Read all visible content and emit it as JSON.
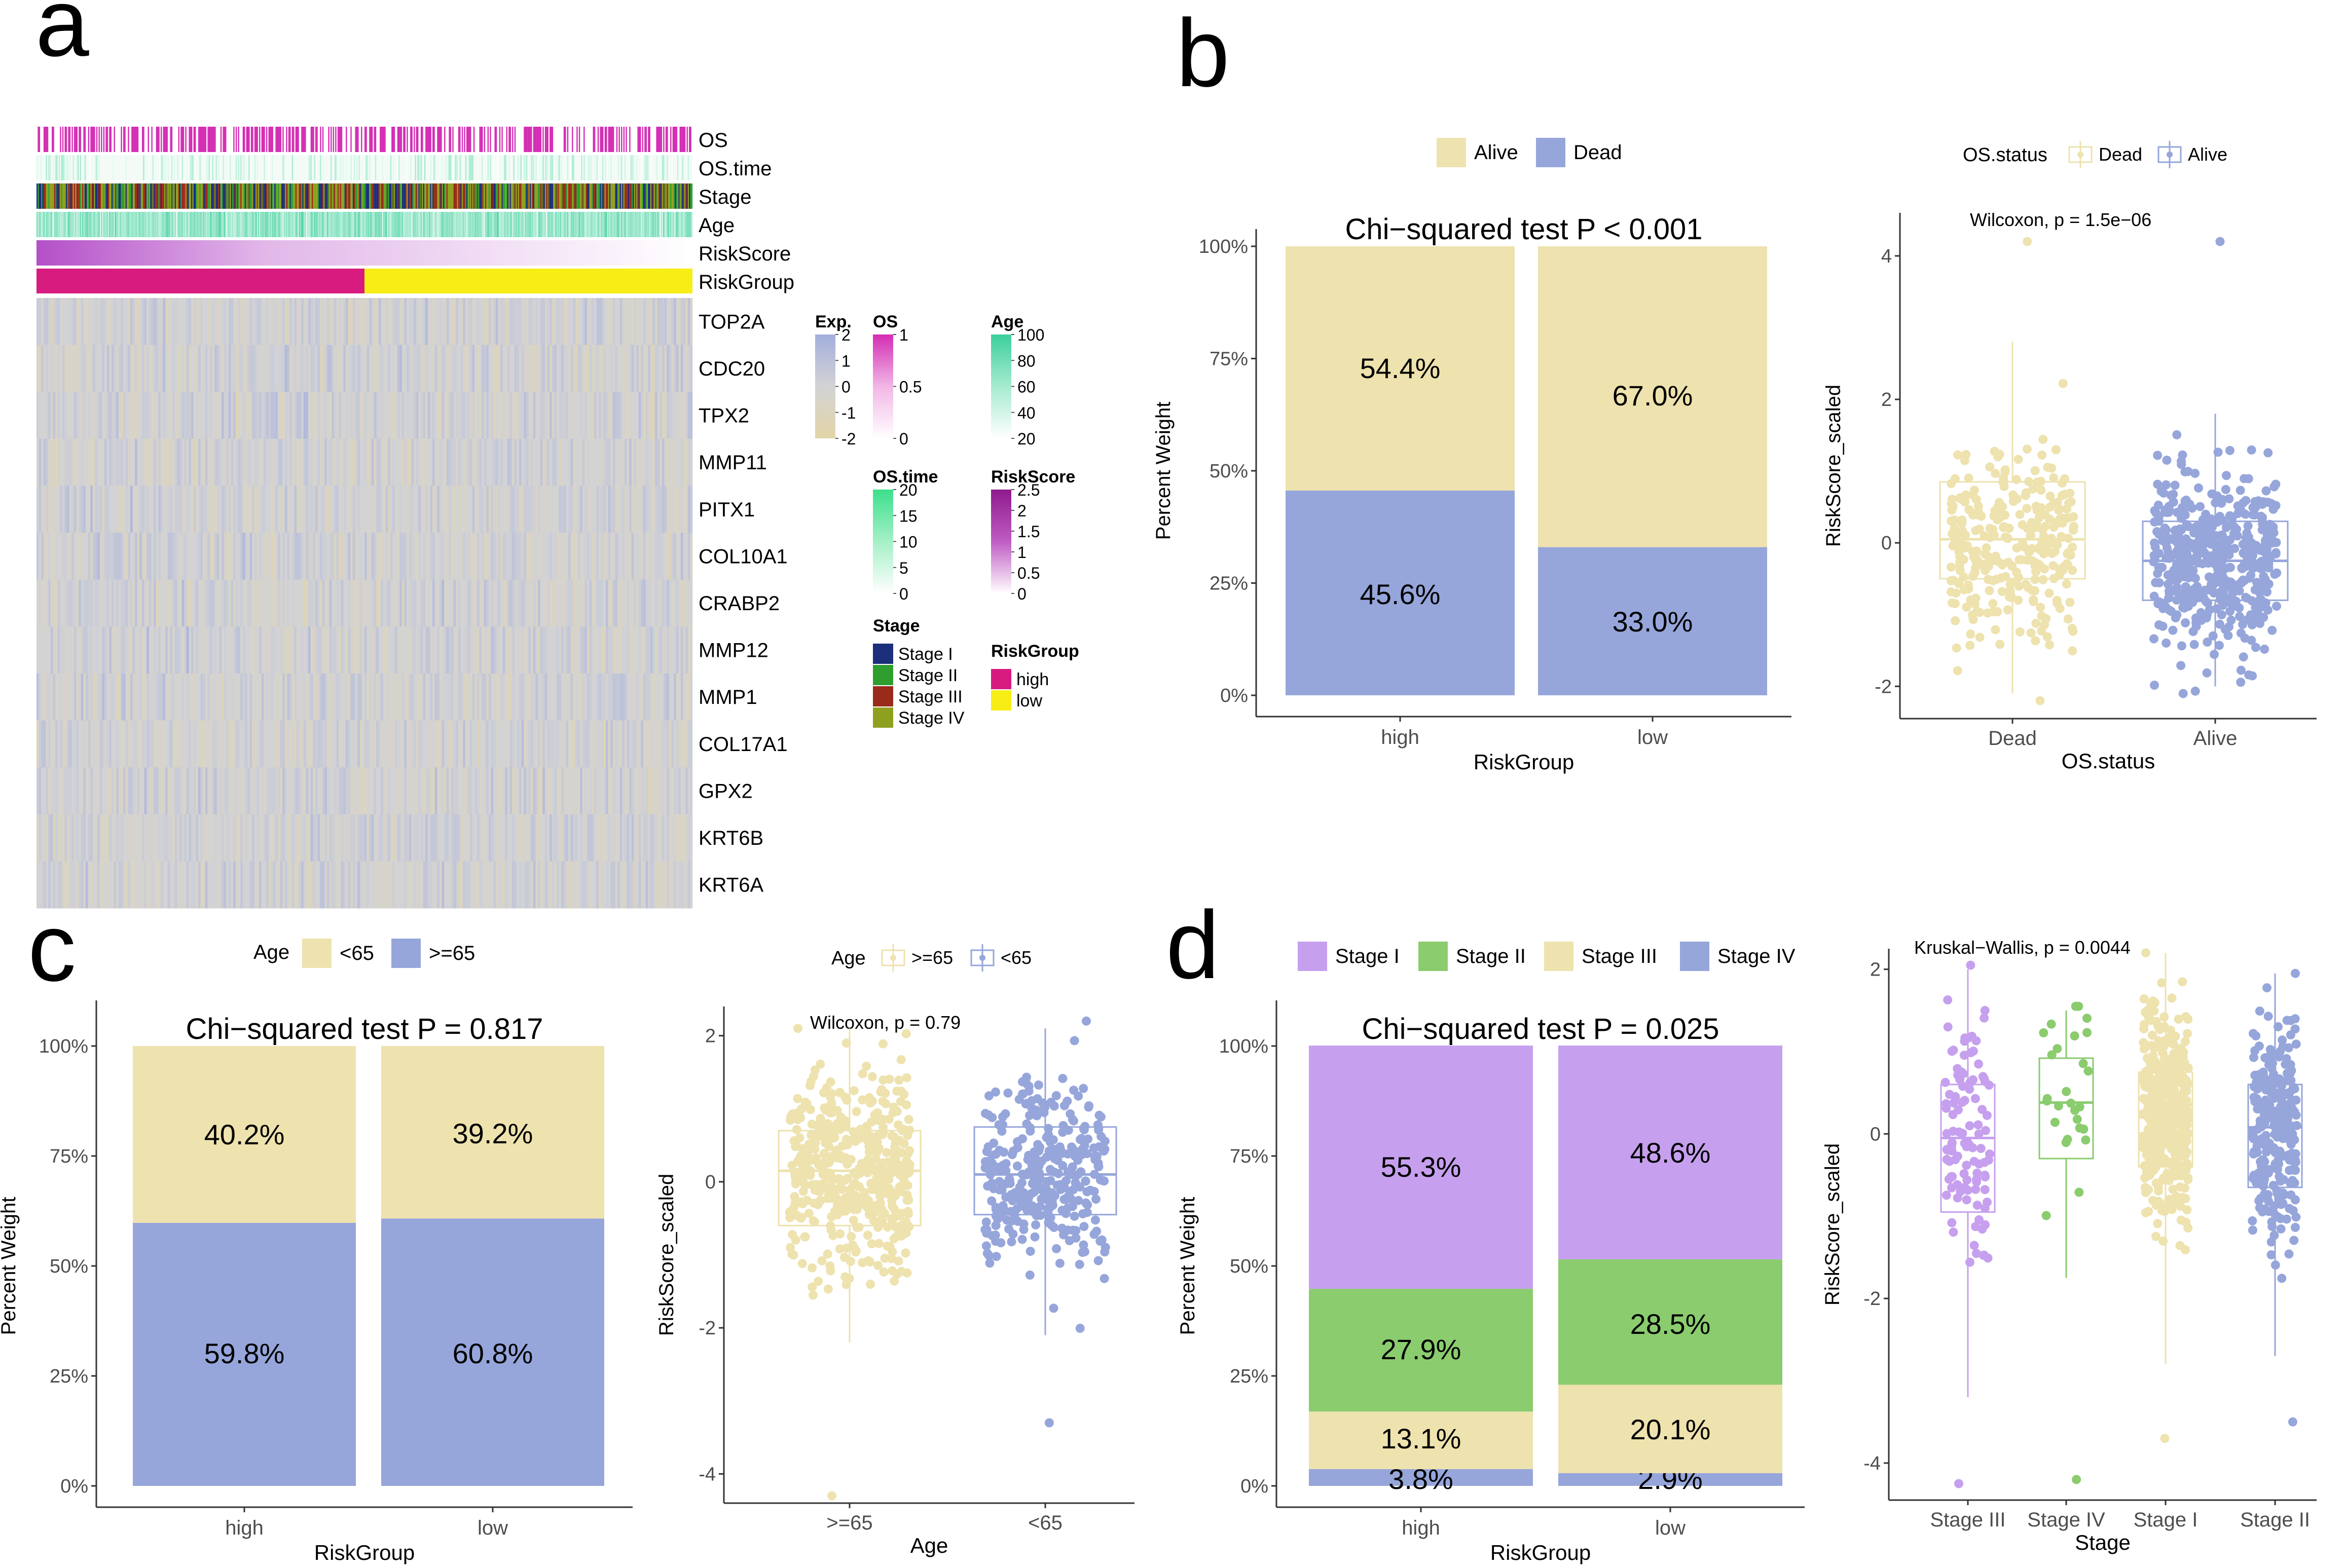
{
  "colors": {
    "alive": "#EEE2AE",
    "dead": "#96A6DB",
    "stage_i": "#C6A0EE",
    "stage_ii": "#8ACC6E",
    "stage_iii": "#EEE2AE",
    "stage_iv": "#96A6DB",
    "high": "#D81B7F",
    "low": "#F7EE16",
    "os_pink": "#D42DB4",
    "teal": "#3CCF9C",
    "grid": "#EBEBEB",
    "axis": "#333333",
    "tick": "#4D4D4D"
  },
  "panel_labels": {
    "a": "a",
    "b": "b",
    "c": "c",
    "d": "d"
  },
  "chart_data": [
    {
      "panel": "a",
      "type": "heatmap",
      "annotation_rows": [
        "OS",
        "OS.time",
        "Stage",
        "Age",
        "RiskScore",
        "RiskGroup"
      ],
      "gene_rows": [
        "TOP2A",
        "CDC20",
        "TPX2",
        "MMP11",
        "PITX1",
        "COL10A1",
        "CRABP2",
        "MMP12",
        "MMP1",
        "COL17A1",
        "GPX2",
        "KRT6B",
        "KRT6A"
      ],
      "high_fraction": 0.5,
      "legends": {
        "exp": {
          "title": "Exp.",
          "ticks": [
            "2",
            "1",
            "0",
            "-1",
            "-2"
          ]
        },
        "os": {
          "title": "OS",
          "ticks": [
            "1",
            "0.5",
            "0"
          ]
        },
        "age": {
          "title": "Age",
          "ticks": [
            "100",
            "80",
            "60",
            "40",
            "20"
          ]
        },
        "ostime": {
          "title": "OS.time",
          "ticks": [
            "20",
            "15",
            "10",
            "5",
            "0"
          ]
        },
        "riskscore": {
          "title": "RiskScore",
          "ticks": [
            "2.5",
            "2",
            "1.5",
            "1",
            "0.5",
            "0"
          ]
        },
        "stage": {
          "title": "Stage",
          "items": [
            "Stage I",
            "Stage II",
            "Stage III",
            "Stage IV"
          ],
          "colors": [
            "#1B2F7A",
            "#2E9E2E",
            "#9A2A1A",
            "#8FA01E"
          ]
        },
        "riskgroup": {
          "title": "RiskGroup",
          "items": [
            "high",
            "low"
          ]
        }
      }
    },
    {
      "panel": "b-left",
      "type": "bar",
      "title": "Chi−squared test P < 0.001",
      "categories": [
        "high",
        "low"
      ],
      "series": [
        {
          "name": "Dead",
          "values": [
            45.6,
            33.0
          ]
        },
        {
          "name": "Alive",
          "values": [
            54.4,
            67.0
          ]
        }
      ],
      "labels": [
        [
          "45.6%",
          "54.4%"
        ],
        [
          "33.0%",
          "67.0%"
        ]
      ],
      "legend": [
        "Alive",
        "Dead"
      ],
      "xlabel": "RiskGroup",
      "ylabel": "Percent Weight",
      "yticks": [
        "0%",
        "25%",
        "50%",
        "75%",
        "100%"
      ],
      "ylim": [
        0,
        100
      ]
    },
    {
      "panel": "b-right",
      "type": "box",
      "annotation": "Wilcoxon, p = 1.5e−06",
      "legend_title": "OS.status",
      "legend": [
        "Dead",
        "Alive"
      ],
      "categories": [
        "Dead",
        "Alive"
      ],
      "boxes": [
        {
          "name": "Dead",
          "q1": -0.5,
          "median": 0.05,
          "q3": 0.85,
          "wlo": -2.1,
          "whi": 2.8,
          "n": 300,
          "ymin": -2.2,
          "ymax": 4.2
        },
        {
          "name": "Alive",
          "q1": -0.8,
          "median": -0.25,
          "q3": 0.3,
          "wlo": -2.0,
          "whi": 1.8,
          "n": 480,
          "ymin": -2.1,
          "ymax": 4.2
        }
      ],
      "xlabel": "OS.status",
      "ylabel": "RiskScore_scaled",
      "yticks": [
        -2,
        0,
        2,
        4
      ],
      "ylim": [
        -2.45,
        4.6
      ]
    },
    {
      "panel": "c-left",
      "type": "bar",
      "title": "Chi−squared test P = 0.817",
      "categories": [
        "high",
        "low"
      ],
      "series": [
        {
          "name": ">=65",
          "values": [
            59.8,
            60.8
          ]
        },
        {
          "name": "<65",
          "values": [
            40.2,
            39.2
          ]
        }
      ],
      "labels": [
        [
          "59.8%",
          "40.2%"
        ],
        [
          "60.8%",
          "39.2%"
        ]
      ],
      "legend_title": "Age",
      "legend": [
        "<65",
        ">=65"
      ],
      "xlabel": "RiskGroup",
      "ylabel": "Percent Weight",
      "yticks": [
        "0%",
        "25%",
        "50%",
        "75%",
        "100%"
      ],
      "ylim": [
        0,
        100
      ]
    },
    {
      "panel": "c-right",
      "type": "box",
      "annotation": "Wilcoxon, p = 0.79",
      "legend_title": "Age",
      "legend": [
        ">=65",
        "<65"
      ],
      "categories": [
        ">=65",
        "<65"
      ],
      "boxes": [
        {
          "name": ">=65",
          "q1": -0.6,
          "median": 0.15,
          "q3": 0.7,
          "wlo": -2.2,
          "whi": 2.1,
          "n": 460,
          "ymin": -4.3,
          "ymax": 2.1
        },
        {
          "name": "<65",
          "q1": -0.45,
          "median": 0.1,
          "q3": 0.75,
          "wlo": -2.1,
          "whi": 2.1,
          "n": 330,
          "ymin": -3.3,
          "ymax": 2.2
        }
      ],
      "xlabel": "Age",
      "ylabel": "RiskScore_scaled",
      "yticks": [
        -4,
        -2,
        0,
        2
      ],
      "ylim": [
        -4.4,
        2.4
      ]
    },
    {
      "panel": "d-left",
      "type": "bar",
      "title": "Chi−squared test P = 0.025",
      "categories": [
        "high",
        "low"
      ],
      "series": [
        {
          "name": "Stage IV",
          "values": [
            3.8,
            2.9
          ]
        },
        {
          "name": "Stage III",
          "values": [
            13.1,
            20.1
          ]
        },
        {
          "name": "Stage II",
          "values": [
            27.9,
            28.5
          ]
        },
        {
          "name": "Stage I",
          "values": [
            55.3,
            48.6
          ]
        }
      ],
      "labels": [
        [
          "3.8%",
          "13.1%",
          "27.9%",
          "55.3%"
        ],
        [
          "2.9%",
          "20.1%",
          "28.5%",
          "48.6%"
        ]
      ],
      "legend": [
        "Stage I",
        "Stage II",
        "Stage III",
        "Stage IV"
      ],
      "xlabel": "RiskGroup",
      "ylabel": "Percent Weight",
      "yticks": [
        "0%",
        "25%",
        "50%",
        "75%",
        "100%"
      ],
      "ylim": [
        0,
        100
      ]
    },
    {
      "panel": "d-right",
      "type": "box",
      "annotation": "Kruskal−Wallis, p = 0.0044",
      "categories": [
        "Stage III",
        "Stage IV",
        "Stage I",
        "Stage II"
      ],
      "boxes": [
        {
          "name": "Stage III",
          "q1": -0.95,
          "median": -0.05,
          "q3": 0.6,
          "wlo": -3.2,
          "whi": 2.0,
          "n": 110,
          "ymin": -4.25,
          "ymax": 2.05
        },
        {
          "name": "Stage IV",
          "q1": -0.3,
          "median": 0.38,
          "q3": 0.92,
          "wlo": -1.75,
          "whi": 1.5,
          "n": 28,
          "ymin": -4.2,
          "ymax": 1.55
        },
        {
          "name": "Stage I",
          "q1": -0.4,
          "median": 0.2,
          "q3": 0.75,
          "wlo": -2.8,
          "whi": 2.2,
          "n": 480,
          "ymin": -3.7,
          "ymax": 2.2
        },
        {
          "name": "Stage II",
          "q1": -0.65,
          "median": 0.08,
          "q3": 0.6,
          "wlo": -2.7,
          "whi": 1.95,
          "n": 260,
          "ymin": -3.5,
          "ymax": 1.95
        }
      ],
      "xlabel": "Stage",
      "ylabel": "RiskScore_scaled",
      "yticks": [
        -4,
        -2,
        0,
        2
      ],
      "ylim": [
        -4.45,
        2.25
      ]
    }
  ]
}
